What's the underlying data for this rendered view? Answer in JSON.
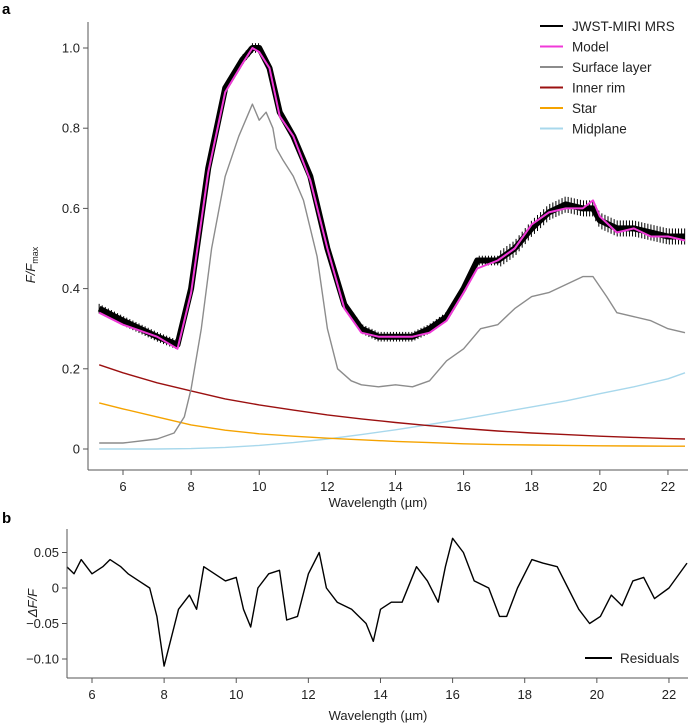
{
  "chart_data": [
    {
      "panel_label": "a",
      "type": "line",
      "xlabel": "Wavelength (µm)",
      "ylabel": {
        "main": "F/F",
        "sub": "max"
      },
      "xlim": [
        5.2,
        22.5
      ],
      "ylim": [
        -0.04,
        1.07
      ],
      "xticks": [
        6,
        8,
        10,
        12,
        14,
        16,
        18,
        20,
        22
      ],
      "yticks": [
        0,
        0.2,
        0.4,
        0.6,
        0.8,
        1.0
      ],
      "ytick_labels": [
        "0",
        "0.2",
        "0.4",
        "0.6",
        "0.8",
        "1.0"
      ],
      "legend_position": "top-right",
      "series": [
        {
          "name": "JWST-MIRI MRS",
          "color": "#000000",
          "x": [
            5.3,
            6,
            7,
            7.6,
            8,
            8.5,
            9,
            9.5,
            9.8,
            10,
            10.3,
            10.6,
            11,
            11.5,
            12,
            12.5,
            13,
            13.5,
            14,
            14.5,
            15,
            15.5,
            16,
            16.4,
            17,
            17.5,
            18,
            18.5,
            19,
            19.5,
            19.8,
            20,
            20.5,
            21,
            21.5,
            22,
            22.5
          ],
          "y": [
            0.35,
            0.32,
            0.28,
            0.26,
            0.4,
            0.7,
            0.9,
            0.97,
            1.0,
            1.0,
            0.95,
            0.84,
            0.78,
            0.68,
            0.5,
            0.36,
            0.3,
            0.28,
            0.28,
            0.28,
            0.3,
            0.33,
            0.4,
            0.47,
            0.47,
            0.5,
            0.55,
            0.59,
            0.61,
            0.6,
            0.6,
            0.57,
            0.55,
            0.55,
            0.54,
            0.53,
            0.53
          ]
        },
        {
          "name": "Model",
          "color": "#f03ad8",
          "x": [
            5.3,
            6,
            7,
            7.6,
            8,
            8.5,
            9,
            9.5,
            9.8,
            10,
            10.3,
            10.6,
            11,
            11.5,
            12,
            12.5,
            13,
            13.5,
            14,
            14.5,
            15,
            15.5,
            16,
            16.4,
            17,
            17.5,
            18,
            18.5,
            19,
            19.5,
            19.8,
            20,
            20.5,
            21,
            21.5,
            22,
            22.5
          ],
          "y": [
            0.34,
            0.31,
            0.28,
            0.25,
            0.39,
            0.69,
            0.89,
            0.96,
            1.0,
            0.99,
            0.95,
            0.83,
            0.78,
            0.67,
            0.5,
            0.35,
            0.29,
            0.28,
            0.28,
            0.28,
            0.29,
            0.32,
            0.39,
            0.45,
            0.47,
            0.5,
            0.56,
            0.59,
            0.6,
            0.6,
            0.62,
            0.58,
            0.54,
            0.55,
            0.53,
            0.53,
            0.52
          ]
        },
        {
          "name": "Surface layer",
          "color": "#8c8c8c",
          "x": [
            5.3,
            6,
            7,
            7.5,
            7.8,
            8,
            8.3,
            8.6,
            9,
            9.4,
            9.7,
            9.8,
            10,
            10.2,
            10.4,
            10.5,
            10.7,
            11,
            11.3,
            11.7,
            12,
            12.3,
            12.7,
            13,
            13.5,
            14,
            14.5,
            15,
            15.5,
            16,
            16.5,
            17,
            17.5,
            18,
            18.5,
            19,
            19.5,
            19.8,
            20.2,
            20.5,
            21,
            21.5,
            22,
            22.5
          ],
          "y": [
            0.015,
            0.015,
            0.025,
            0.04,
            0.08,
            0.15,
            0.3,
            0.5,
            0.68,
            0.78,
            0.84,
            0.86,
            0.82,
            0.84,
            0.8,
            0.75,
            0.72,
            0.68,
            0.62,
            0.48,
            0.3,
            0.2,
            0.17,
            0.16,
            0.155,
            0.16,
            0.155,
            0.17,
            0.22,
            0.25,
            0.3,
            0.31,
            0.35,
            0.38,
            0.39,
            0.41,
            0.43,
            0.43,
            0.38,
            0.34,
            0.33,
            0.32,
            0.3,
            0.29
          ]
        },
        {
          "name": "Inner rim",
          "color": "#9b1010",
          "x": [
            5.3,
            6,
            7,
            8,
            9,
            10,
            11,
            12,
            13,
            14,
            15,
            16,
            17,
            18,
            19,
            20,
            21,
            22,
            22.5
          ],
          "y": [
            0.21,
            0.19,
            0.165,
            0.145,
            0.125,
            0.11,
            0.097,
            0.085,
            0.075,
            0.066,
            0.058,
            0.051,
            0.045,
            0.04,
            0.036,
            0.032,
            0.029,
            0.026,
            0.025
          ]
        },
        {
          "name": "Star",
          "color": "#f5a300",
          "x": [
            5.3,
            6,
            7,
            8,
            9,
            10,
            11,
            12,
            13,
            14,
            15,
            16,
            17,
            18,
            19,
            20,
            21,
            22,
            22.5
          ],
          "y": [
            0.115,
            0.1,
            0.08,
            0.06,
            0.047,
            0.038,
            0.032,
            0.027,
            0.023,
            0.019,
            0.016,
            0.013,
            0.011,
            0.01,
            0.009,
            0.008,
            0.0075,
            0.007,
            0.007
          ]
        },
        {
          "name": "Midplane",
          "color": "#a8d8ec",
          "x": [
            5.3,
            7,
            8,
            9,
            10,
            11,
            12,
            13,
            14,
            15,
            16,
            17,
            18,
            19,
            20,
            21,
            22,
            22.5
          ],
          "y": [
            0,
            0,
            0.001,
            0.004,
            0.009,
            0.016,
            0.025,
            0.036,
            0.048,
            0.061,
            0.075,
            0.09,
            0.105,
            0.12,
            0.138,
            0.155,
            0.175,
            0.19
          ]
        }
      ]
    },
    {
      "panel_label": "b",
      "type": "line",
      "xlabel": "Wavelength (µm)",
      "ylabel": "ΔF/F",
      "xlim": [
        5.2,
        22.5
      ],
      "ylim": [
        -0.128,
        0.08
      ],
      "xticks": [
        6,
        8,
        10,
        12,
        14,
        16,
        18,
        20,
        22
      ],
      "yticks": [
        0.05,
        0,
        -0.05,
        -0.1
      ],
      "ytick_labels": [
        "0.05",
        "0",
        "−0.05",
        "−0.10"
      ],
      "legend_position": "bottom-right",
      "series": [
        {
          "name": "Residuals",
          "color": "#000000",
          "x": [
            5.3,
            5.5,
            5.7,
            6,
            6.3,
            6.5,
            6.8,
            7,
            7.3,
            7.6,
            7.8,
            8,
            8.2,
            8.4,
            8.7,
            8.9,
            9.1,
            9.4,
            9.7,
            10,
            10.2,
            10.4,
            10.6,
            10.9,
            11.2,
            11.4,
            11.7,
            12,
            12.3,
            12.5,
            12.8,
            13.2,
            13.6,
            13.8,
            14,
            14.3,
            14.6,
            15,
            15.3,
            15.6,
            15.8,
            16,
            16.3,
            16.6,
            17,
            17.3,
            17.5,
            17.8,
            18.2,
            18.5,
            18.9,
            19.2,
            19.5,
            19.8,
            20.1,
            20.4,
            20.7,
            21,
            21.3,
            21.6,
            22,
            22.5
          ],
          "y": [
            0.03,
            0.02,
            0.04,
            0.02,
            0.03,
            0.04,
            0.03,
            0.02,
            0.01,
            0.0,
            -0.04,
            -0.11,
            -0.07,
            -0.03,
            -0.01,
            -0.03,
            0.03,
            0.02,
            0.01,
            0.015,
            -0.03,
            -0.055,
            0.0,
            0.02,
            0.025,
            -0.045,
            -0.04,
            0.02,
            0.05,
            0.0,
            -0.02,
            -0.03,
            -0.05,
            -0.075,
            -0.03,
            -0.02,
            -0.02,
            0.03,
            0.01,
            -0.02,
            0.03,
            0.07,
            0.05,
            0.01,
            0.0,
            -0.04,
            -0.04,
            0.0,
            0.04,
            0.035,
            0.03,
            0.0,
            -0.03,
            -0.05,
            -0.04,
            -0.01,
            -0.025,
            0.01,
            0.015,
            -0.015,
            0.0,
            0.035
          ]
        }
      ]
    }
  ]
}
